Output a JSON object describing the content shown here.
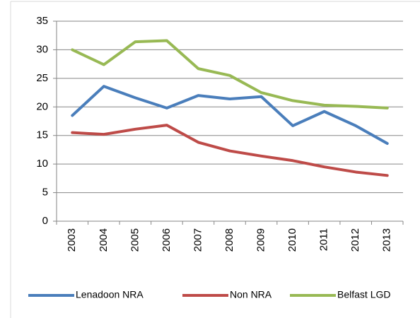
{
  "chart_data": {
    "type": "line",
    "categories": [
      "2003",
      "2004",
      "2005",
      "2006",
      "2007",
      "2008",
      "2009",
      "2010",
      "2011",
      "2012",
      "2013"
    ],
    "series": [
      {
        "name": "Lenadoon NRA",
        "color": "#4a7ebb",
        "values": [
          18.5,
          23.6,
          21.6,
          19.8,
          22.0,
          21.4,
          21.8,
          16.7,
          19.2,
          16.7,
          13.6
        ]
      },
      {
        "name": "Non NRA",
        "color": "#be4b48",
        "values": [
          15.5,
          15.2,
          16.1,
          16.8,
          13.8,
          12.3,
          11.4,
          10.6,
          9.5,
          8.6,
          8.0
        ]
      },
      {
        "name": "Belfast LGD",
        "color": "#98b954",
        "values": [
          30.0,
          27.4,
          31.4,
          31.6,
          26.7,
          25.5,
          22.5,
          21.1,
          20.3,
          20.1,
          19.8
        ]
      }
    ],
    "ylim": [
      0,
      35
    ],
    "yticks": [
      0,
      5,
      10,
      15,
      20,
      25,
      30,
      35
    ],
    "grid": true,
    "legend": "bottom"
  }
}
